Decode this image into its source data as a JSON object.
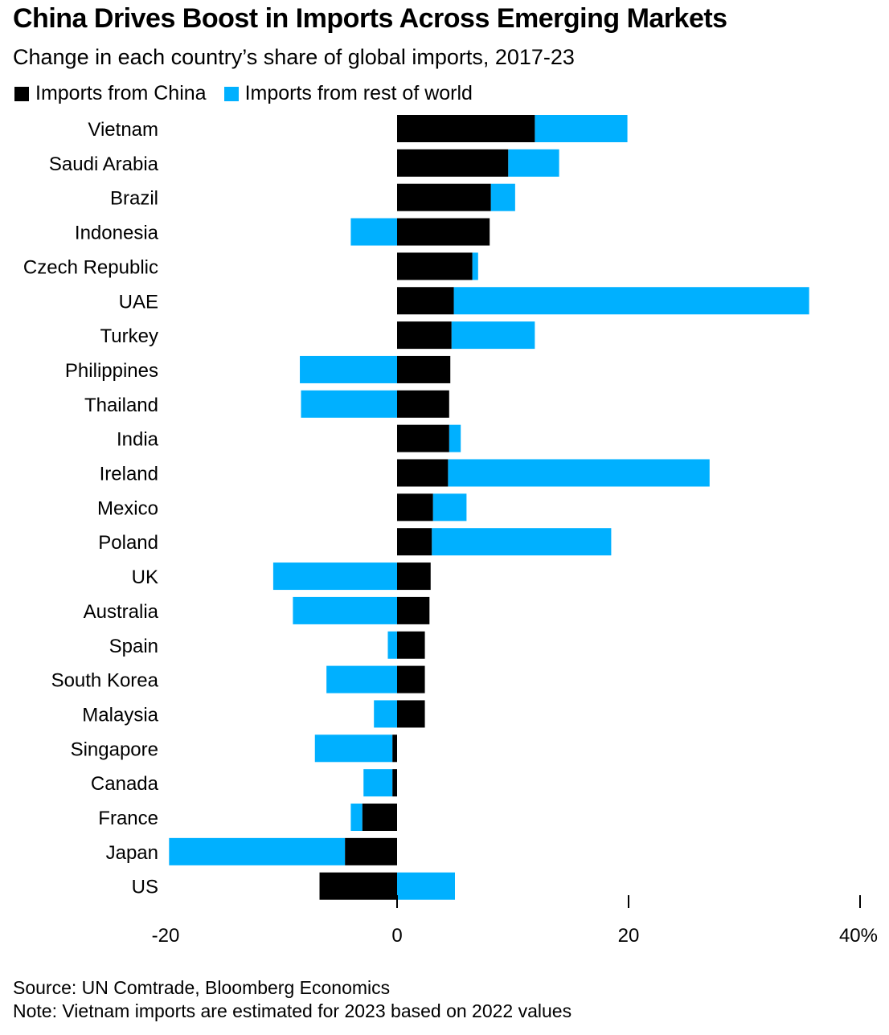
{
  "title": "China Drives Boost in Imports Across Emerging Markets",
  "subtitle": "Change in each country’s share of global imports, 2017-23",
  "source": "Source: UN Comtrade, Bloomberg Economics",
  "note": "Note: Vietnam imports are estimated for 2023 based on 2022 values",
  "colors": {
    "china": "#000000",
    "rest": "#00b0ff"
  },
  "chart_data": {
    "type": "bar",
    "orientation": "horizontal",
    "stacked": true,
    "title": "China Drives Boost in Imports Across Emerging Markets",
    "subtitle": "Change in each country’s share of global imports, 2017-23",
    "xlim": [
      -20,
      40
    ],
    "xticks": [
      -20,
      0,
      20,
      40
    ],
    "xtick_labels": [
      "-20",
      "0",
      "20",
      "40%"
    ],
    "legend_position": "top-left",
    "categories": [
      "Vietnam",
      "Saudi Arabia",
      "Brazil",
      "Indonesia",
      "Czech Republic",
      "UAE",
      "Turkey",
      "Philippines",
      "Thailand",
      "India",
      "Ireland",
      "Mexico",
      "Poland",
      "UK",
      "Australia",
      "Spain",
      "South Korea",
      "Malaysia",
      "Singapore",
      "Canada",
      "France",
      "Japan",
      "US"
    ],
    "series": [
      {
        "name": "Imports from China",
        "color": "#000000",
        "values": [
          11.9,
          9.6,
          8.1,
          8.0,
          6.5,
          4.9,
          4.7,
          4.6,
          4.5,
          4.5,
          4.4,
          3.1,
          3.0,
          2.9,
          2.8,
          2.4,
          2.4,
          2.4,
          -0.4,
          -0.4,
          -3.0,
          -4.5,
          -6.7
        ]
      },
      {
        "name": "Imports from rest of world",
        "color": "#00b0ff",
        "values": [
          8.0,
          4.4,
          2.1,
          -4.0,
          0.5,
          30.7,
          7.2,
          -8.4,
          -8.3,
          1.0,
          22.6,
          2.9,
          15.5,
          -10.7,
          -9.0,
          -0.8,
          -6.1,
          -2.0,
          -6.7,
          -2.5,
          -1.0,
          -15.2,
          5.0
        ]
      }
    ]
  }
}
